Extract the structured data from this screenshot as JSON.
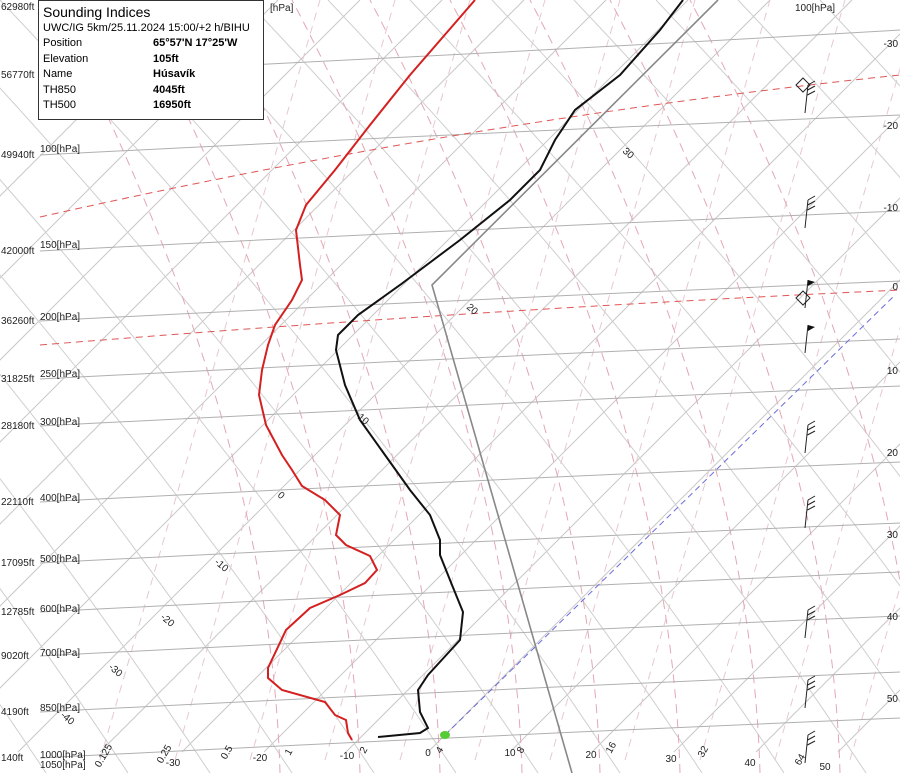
{
  "info_box": {
    "title": "Sounding Indices",
    "subtitle": "UWC/IG 5km/25.11.2024 15:00/+2 h/BIHU",
    "rows": [
      [
        "Position",
        "65°57'N 17°25'W"
      ],
      [
        "Elevation",
        "105ft"
      ],
      [
        "Name",
        "Húsavík"
      ],
      [
        "TH850",
        "4045ft"
      ],
      [
        "TH500",
        "16950ft"
      ]
    ]
  },
  "altitude_labels": [
    "62980ft",
    "56770ft",
    "49940ft",
    "42000ft",
    "36260ft",
    "31825ft",
    "28180ft",
    "22110ft",
    "17095ft",
    "12785ft",
    "9020ft",
    "4190ft",
    "140ft"
  ],
  "pressure_labels": [
    "100[hPa]",
    "150[hPa]",
    "200[hPa]",
    "250[hPa]",
    "300[hPa]",
    "400[hPa]",
    "500[hPa]",
    "600[hPa]",
    "700[hPa]",
    "850[hPa]",
    "1000[hPa]",
    "1050[hPa]"
  ],
  "top_labels": [
    "[hPa]",
    "100[hPa]"
  ],
  "right_temperature_labels": [
    "-30",
    "-20",
    "-10",
    "0",
    "10",
    "20",
    "30",
    "40",
    "50"
  ],
  "bottom_temperature_labels": [
    "-30",
    "-20",
    "-10",
    "0",
    "10",
    "20",
    "30",
    "40",
    "50"
  ],
  "mixing_ratio_labels": [
    "0.125",
    "0.25",
    "0.5",
    "1",
    "2",
    "4",
    "8",
    "16",
    "32",
    "64"
  ],
  "adiabat_labels": [
    "30",
    "20",
    "10",
    "0",
    "-10",
    "-20",
    "-30",
    "-40"
  ]
}
